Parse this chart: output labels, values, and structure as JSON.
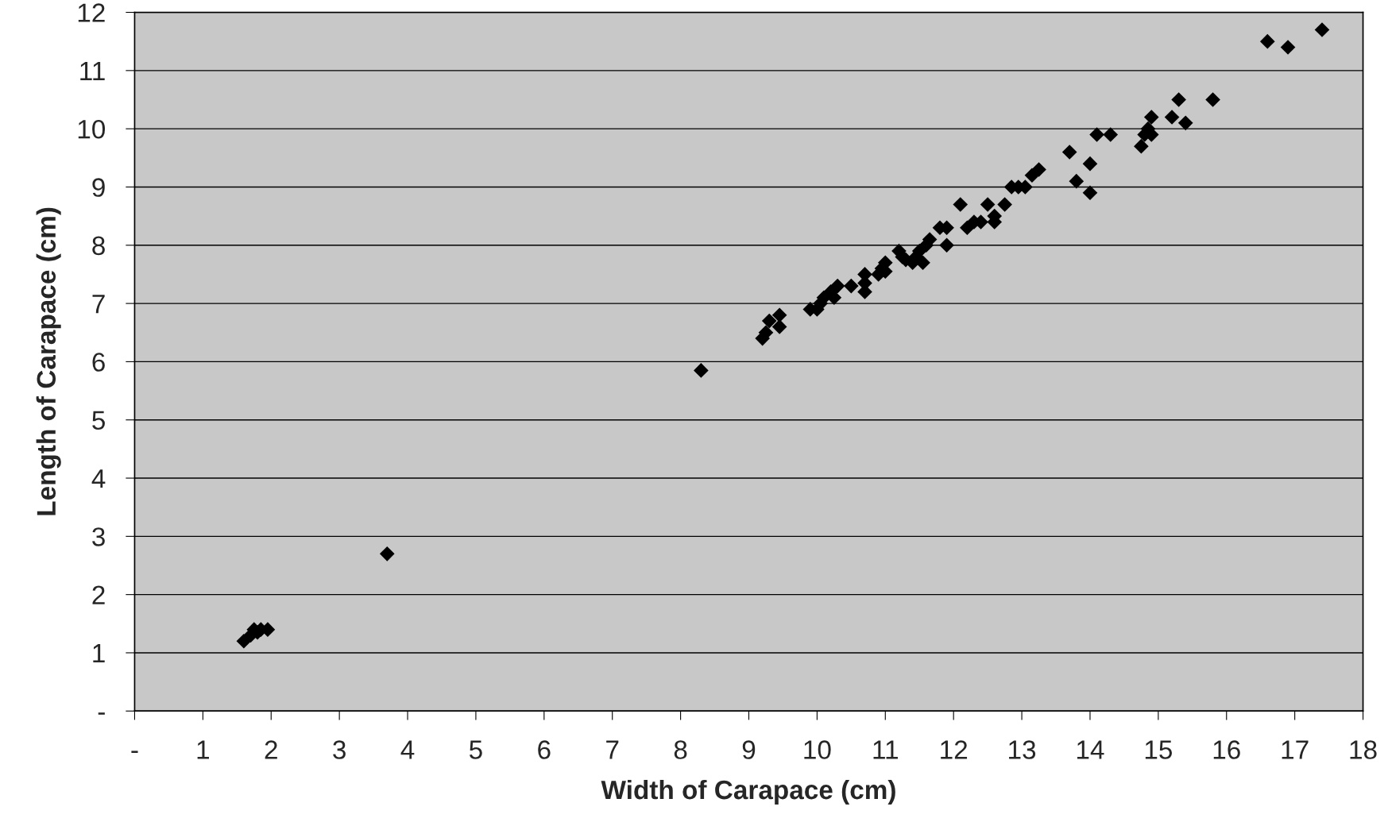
{
  "chart_data": {
    "type": "scatter",
    "xlabel": "Width of Carapace (cm)",
    "ylabel": "Length of Carapace (cm)",
    "marker": "diamond",
    "grid": "y",
    "xlim": [
      0,
      18
    ],
    "ylim": [
      0,
      12
    ],
    "xticks": [
      {
        "value": 0,
        "label": "-"
      },
      1,
      2,
      3,
      4,
      5,
      6,
      7,
      8,
      9,
      10,
      11,
      12,
      13,
      14,
      15,
      16,
      17,
      18
    ],
    "yticks": [
      {
        "value": 0,
        "label": "-"
      },
      1,
      2,
      3,
      4,
      5,
      6,
      7,
      8,
      9,
      10,
      11,
      12
    ],
    "series": [
      {
        "color": "#000000",
        "x": [
          1.6,
          1.7,
          1.75,
          1.8,
          1.85,
          1.95,
          3.7,
          8.3,
          9.2,
          9.25,
          9.3,
          9.45,
          9.45,
          9.9,
          10.0,
          10.05,
          10.1,
          10.2,
          10.25,
          10.3,
          10.5,
          10.7,
          10.7,
          10.7,
          10.9,
          10.95,
          11.0,
          11.0,
          11.2,
          11.25,
          11.3,
          11.4,
          11.45,
          11.5,
          11.55,
          11.6,
          11.65,
          11.8,
          11.9,
          11.9,
          12.1,
          12.2,
          12.3,
          12.4,
          12.5,
          12.6,
          12.6,
          12.75,
          12.85,
          12.95,
          13.05,
          13.15,
          13.25,
          13.7,
          13.8,
          14.0,
          14.0,
          14.1,
          14.3,
          14.75,
          14.8,
          14.85,
          14.9,
          14.9,
          15.2,
          15.3,
          15.4,
          15.8,
          16.6,
          16.9,
          17.4
        ],
        "values": [
          1.2,
          1.3,
          1.4,
          1.35,
          1.4,
          1.4,
          2.7,
          5.85,
          6.4,
          6.5,
          6.7,
          6.6,
          6.8,
          6.9,
          6.9,
          7.0,
          7.1,
          7.2,
          7.1,
          7.3,
          7.3,
          7.2,
          7.35,
          7.5,
          7.5,
          7.6,
          7.7,
          7.55,
          7.9,
          7.8,
          7.75,
          7.7,
          7.8,
          7.9,
          7.7,
          8.0,
          8.1,
          8.3,
          8.0,
          8.3,
          8.7,
          8.3,
          8.4,
          8.4,
          8.7,
          8.4,
          8.5,
          8.7,
          9.0,
          9.0,
          9.0,
          9.2,
          9.3,
          9.6,
          9.1,
          8.9,
          9.4,
          9.9,
          9.9,
          9.7,
          9.9,
          10.0,
          9.9,
          10.2,
          10.2,
          10.5,
          10.1,
          10.5,
          11.5,
          11.4,
          11.7
        ]
      }
    ]
  }
}
